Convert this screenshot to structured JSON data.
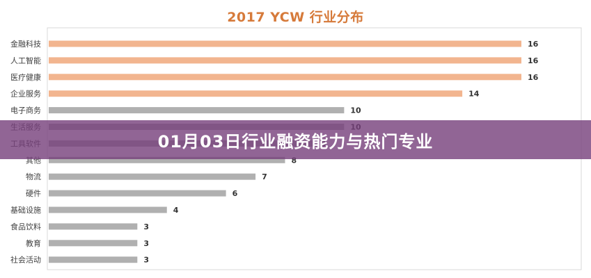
{
  "banner": {
    "text": "01月03日行业融资能力与热门专业"
  },
  "colors": {
    "highlight": "#f2b58f",
    "normal": "#b0b0b0",
    "title": "#d67a3a",
    "banner": "#763e7a"
  },
  "chart_data": {
    "type": "bar",
    "orientation": "horizontal",
    "title": "2017 YCW 行业分布",
    "categories": [
      "金融科技",
      "人工智能",
      "医疗健康",
      "企业服务",
      "电子商务",
      "生活服务",
      "工具软件",
      "其他",
      "物流",
      "硬件",
      "基础设施",
      "食品饮料",
      "教育",
      "社会活动"
    ],
    "values": [
      16,
      16,
      16,
      14,
      10,
      10,
      9,
      8,
      7,
      6,
      4,
      3,
      3,
      3
    ],
    "highlighted": [
      true,
      true,
      true,
      true,
      false,
      false,
      false,
      false,
      false,
      false,
      false,
      false,
      false,
      false
    ],
    "xlim": [
      0,
      18
    ],
    "grid": false,
    "data_labels": true
  }
}
